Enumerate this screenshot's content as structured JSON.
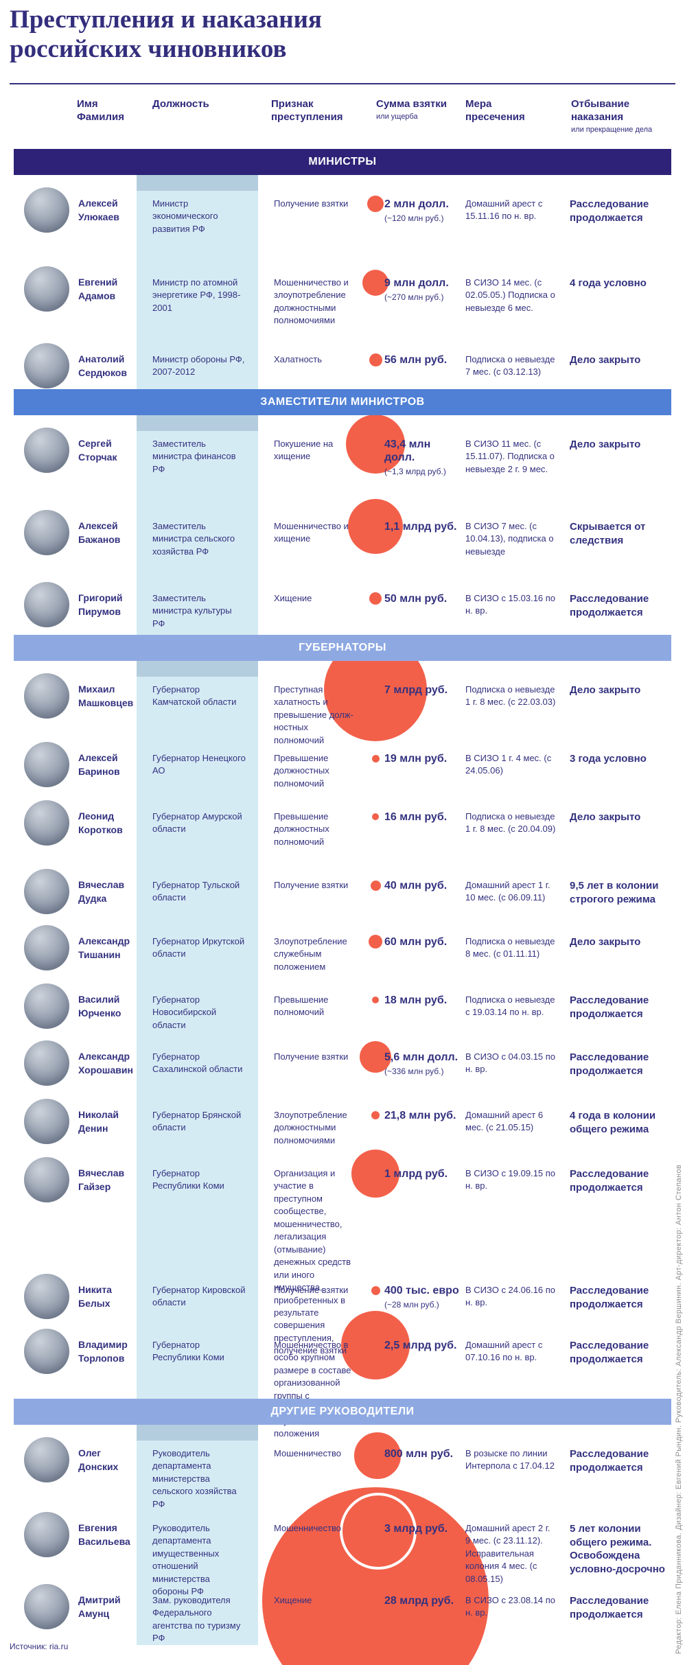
{
  "page": {
    "title": "Преступления и наказания российских чиновников",
    "source": "Источник: ria.ru",
    "credits": "Редактор: Елена Приданникова. Дизайнер: Евгений Рындин. Руководитель: Александр Вершинин. Арт-директор: Антон Степанов"
  },
  "colors": {
    "navy": "#332e7c",
    "text": "#33317f",
    "red": "#f2604a",
    "strip": "#d5ebf4",
    "strip_cap": "#b4cdde"
  },
  "columns": [
    {
      "label": "Имя Фамилия",
      "sub": ""
    },
    {
      "label": "Должность",
      "sub": ""
    },
    {
      "label": "Признак преступления",
      "sub": ""
    },
    {
      "label": "Сумма взятки",
      "sub": "или ущерба"
    },
    {
      "label": "Мера пресечения",
      "sub": ""
    },
    {
      "label": "Отбывание наказания",
      "sub": "или прекращение дела"
    }
  ],
  "sections": [
    {
      "label": "МИНИСТРЫ",
      "band_color": "#2d2277",
      "fold_color": "",
      "rows": [
        {
          "name_first": "Алексей",
          "name_last": "Улюкаев",
          "position": "Министр экономического развития РФ",
          "crime": "Получение взятки",
          "amount": "2 млн долл.",
          "amount_note": "(~120 млн руб.)",
          "amount_mln_rub": 120,
          "measure": "Домашний арест с 15.11.16 по н. вр.",
          "outcome": "Расследование продолжается"
        },
        {
          "name_first": "Евгений",
          "name_last": "Адамов",
          "position": "Министр по атомной энергетике РФ, 1998-2001",
          "crime": "Мошенничество и злоупотребление должностными полномочиями",
          "amount": "9 млн долл.",
          "amount_note": "(~270 млн руб.)",
          "amount_mln_rub": 270,
          "measure": "В СИЗО 14 мес. (с 02.05.05.) Подписка о невыезде 6 мес.",
          "outcome": "4 года условно"
        },
        {
          "name_first": "Анатолий",
          "name_last": "Сердюков",
          "position": "Министр обороны РФ, 2007-2012",
          "crime": "Халатность",
          "amount": "56 млн руб.",
          "amount_note": "",
          "amount_mln_rub": 56,
          "measure": "Подписка о невыезде 7 мес. (с 03.12.13)",
          "outcome": "Дело закрыто"
        }
      ]
    },
    {
      "label": "ЗАМЕСТИТЕЛИ МИНИСТРОВ",
      "band_color": "#4f80d5",
      "fold_color": "#a9c3ec",
      "rows": [
        {
          "name_first": "Сергей",
          "name_last": "Сторчак",
          "position": "Заместитель министра финансов РФ",
          "crime": "Покушение на хищение",
          "amount": "43,4 млн долл.",
          "amount_note": "(~1,3 млрд руб.)",
          "amount_mln_rub": 1300,
          "measure": "В СИЗО 11 мес. (с 15.11.07). Подписка о невыезде 2 г. 9 мес.",
          "outcome": "Дело закрыто"
        },
        {
          "name_first": "Алексей",
          "name_last": "Бажанов",
          "position": "Заместитель министра сельского хозяйства РФ",
          "crime": "Мошенничество и хищение",
          "amount": "1,1 млрд руб.",
          "amount_note": "",
          "amount_mln_rub": 1100,
          "measure": "В СИЗО 7 мес. (с 10.04.13), подписка о невыезде",
          "outcome": "Скрывается от следствия"
        },
        {
          "name_first": "Григорий",
          "name_last": "Пирумов",
          "position": "Заместитель министра культуры РФ",
          "crime": "Хищение",
          "amount": "50 млн руб.",
          "amount_note": "",
          "amount_mln_rub": 50,
          "measure": "В СИЗО с 15.03.16 по н. вр.",
          "outcome": "Расследование продолжается"
        }
      ]
    },
    {
      "label": "ГУБЕРНАТОРЫ",
      "band_color": "#8ea9e2",
      "fold_color": "#c6d5f3",
      "rows": [
        {
          "name_first": "Михаил",
          "name_last": "Машковцев",
          "position": "Губернатор Камчатской области",
          "crime": "Преступная халатность и превышение долж­ностных полномочий",
          "amount": "7 млрд руб.",
          "amount_note": "",
          "amount_mln_rub": 7000,
          "measure": "Подписка о невыезде 1 г. 8 мес. (с 22.03.03)",
          "outcome": "Дело закрыто"
        },
        {
          "name_first": "Алексей",
          "name_last": "Баринов",
          "position": "Губернатор Ненецкого АО",
          "crime": "Превышение должностных полномочий",
          "amount": "19 млн руб.",
          "amount_note": "",
          "amount_mln_rub": 19,
          "measure": "В СИЗО 1 г. 4 мес. (с 24.05.06)",
          "outcome": "3 года условно"
        },
        {
          "name_first": "Леонид",
          "name_last": "Коротков",
          "position": "Губернатор Амурской области",
          "crime": "Превышение должностных полномочий",
          "amount": "16 млн руб.",
          "amount_note": "",
          "amount_mln_rub": 16,
          "measure": "Подписка о невыезде 1 г. 8 мес. (с 20.04.09)",
          "outcome": "Дело закрыто"
        },
        {
          "name_first": "Вячеслав",
          "name_last": "Дудка",
          "position": "Губернатор Тульской области",
          "crime": "Получение взятки",
          "amount": "40 млн руб.",
          "amount_note": "",
          "amount_mln_rub": 40,
          "measure": "Домашний арест 1 г. 10 мес. (с 06.09.11)",
          "outcome": "9,5 лет в колонии строгого режима"
        },
        {
          "name_first": "Александр",
          "name_last": "Тишанин",
          "position": "Губернатор Иркутской области",
          "crime": "Злоупотребление служебным положением",
          "amount": "60 млн руб.",
          "amount_note": "",
          "amount_mln_rub": 60,
          "measure": "Подписка о невыезде 8 мес. (с 01.11.11)",
          "outcome": "Дело закрыто"
        },
        {
          "name_first": "Василий",
          "name_last": "Юрченко",
          "position": "Губернатор Новосибирской области",
          "crime": "Превышение полномочий",
          "amount": "18 млн руб.",
          "amount_note": "",
          "amount_mln_rub": 18,
          "measure": "Подписка о невыезде с 19.03.14 по н. вр.",
          "outcome": "Расследование продолжается"
        },
        {
          "name_first": "Александр",
          "name_last": "Хорошавин",
          "position": "Губернатор Сахалинской области",
          "crime": "Получение взятки",
          "amount": "5,6 млн долл.",
          "amount_note": "(~336 млн руб.)",
          "amount_mln_rub": 336,
          "measure": "В СИЗО с 04.03.15 по н. вр.",
          "outcome": "Расследование продолжается"
        },
        {
          "name_first": "Николай",
          "name_last": "Денин",
          "position": "Губернатор Брянской области",
          "crime": "Злоупотребление должностными полномочиями",
          "amount": "21,8 млн руб.",
          "amount_note": "",
          "amount_mln_rub": 21.8,
          "measure": "Домашний арест 6 мес. (с 21.05.15)",
          "outcome": "4 года в колонии общего режима"
        },
        {
          "name_first": "Вячеслав",
          "name_last": "Гайзер",
          "position": "Губернатор Республики Коми",
          "crime": "Организация и участие в преступном сообществе, мошенничество, легализация (отмывание) денежных средств или иного имущества, приобретенных в результате совершения преступления, получение взятки",
          "amount": "1 млрд руб.",
          "amount_note": "",
          "amount_mln_rub": 1000,
          "measure": "В СИЗО с 19.09.15 по н. вр.",
          "outcome": "Расследование продолжается"
        },
        {
          "name_first": "Никита",
          "name_last": "Белых",
          "position": "Губернатор Кировской области",
          "crime": "Получение взятки",
          "amount": "400 тыс. евро",
          "amount_note": "(~28 млн руб.)",
          "amount_mln_rub": 28,
          "measure": "В СИЗО с 24.06.16 по н. вр.",
          "outcome": "Расследование продолжается"
        },
        {
          "name_first": "Владимир",
          "name_last": "Торлопов",
          "position": "Губернатор Республики Коми",
          "crime": "Мошенничество в особо крупном размере в составе организованной группы с использованием служебного положения",
          "amount": "2,5 млрд руб.",
          "amount_note": "",
          "amount_mln_rub": 2500,
          "measure": "Домашний арест с 07.10.16 по н. вр.",
          "outcome": "Расследование продолжается"
        }
      ]
    },
    {
      "label": "ДРУГИЕ РУКОВОДИТЕЛИ",
      "band_color": "#8ea9e2",
      "fold_color": "#c6d5f3",
      "rows": [
        {
          "name_first": "Олег",
          "name_last": "Донских",
          "position": "Руководитель департамента министерства сельского хозяйства РФ",
          "crime": "Мошенничество",
          "amount": "800 млн руб.",
          "amount_note": "",
          "amount_mln_rub": 800,
          "measure": "В розыске по линии Интерпола с 17.04.12",
          "outcome": "Расследование продолжается"
        },
        {
          "name_first": "Евгения",
          "name_last": "Васильева",
          "position": "Руководитель департамента имущественных отношений министерства обороны РФ",
          "crime": "Мошенничество",
          "amount": "3 млрд руб.",
          "amount_note": "",
          "amount_mln_rub": 3000,
          "measure": "Домашний арест 2 г. 9 мес. (с 23.11.12). Исправительная колония 4 мес. (с 08.05.15)",
          "outcome": "5 лет колонии общего режима. Освобождена условно-досрочно"
        },
        {
          "name_first": "Дмитрий",
          "name_last": "Амунц",
          "position": "Зам. руководителя Федерального агентства по туризму РФ",
          "crime": "Хищение",
          "amount": "28 млрд руб.",
          "amount_note": "",
          "amount_mln_rub": 28000,
          "measure": "В СИЗО с 23.08.14 по н. вр.",
          "outcome": "Расследование продолжается"
        }
      ]
    }
  ]
}
